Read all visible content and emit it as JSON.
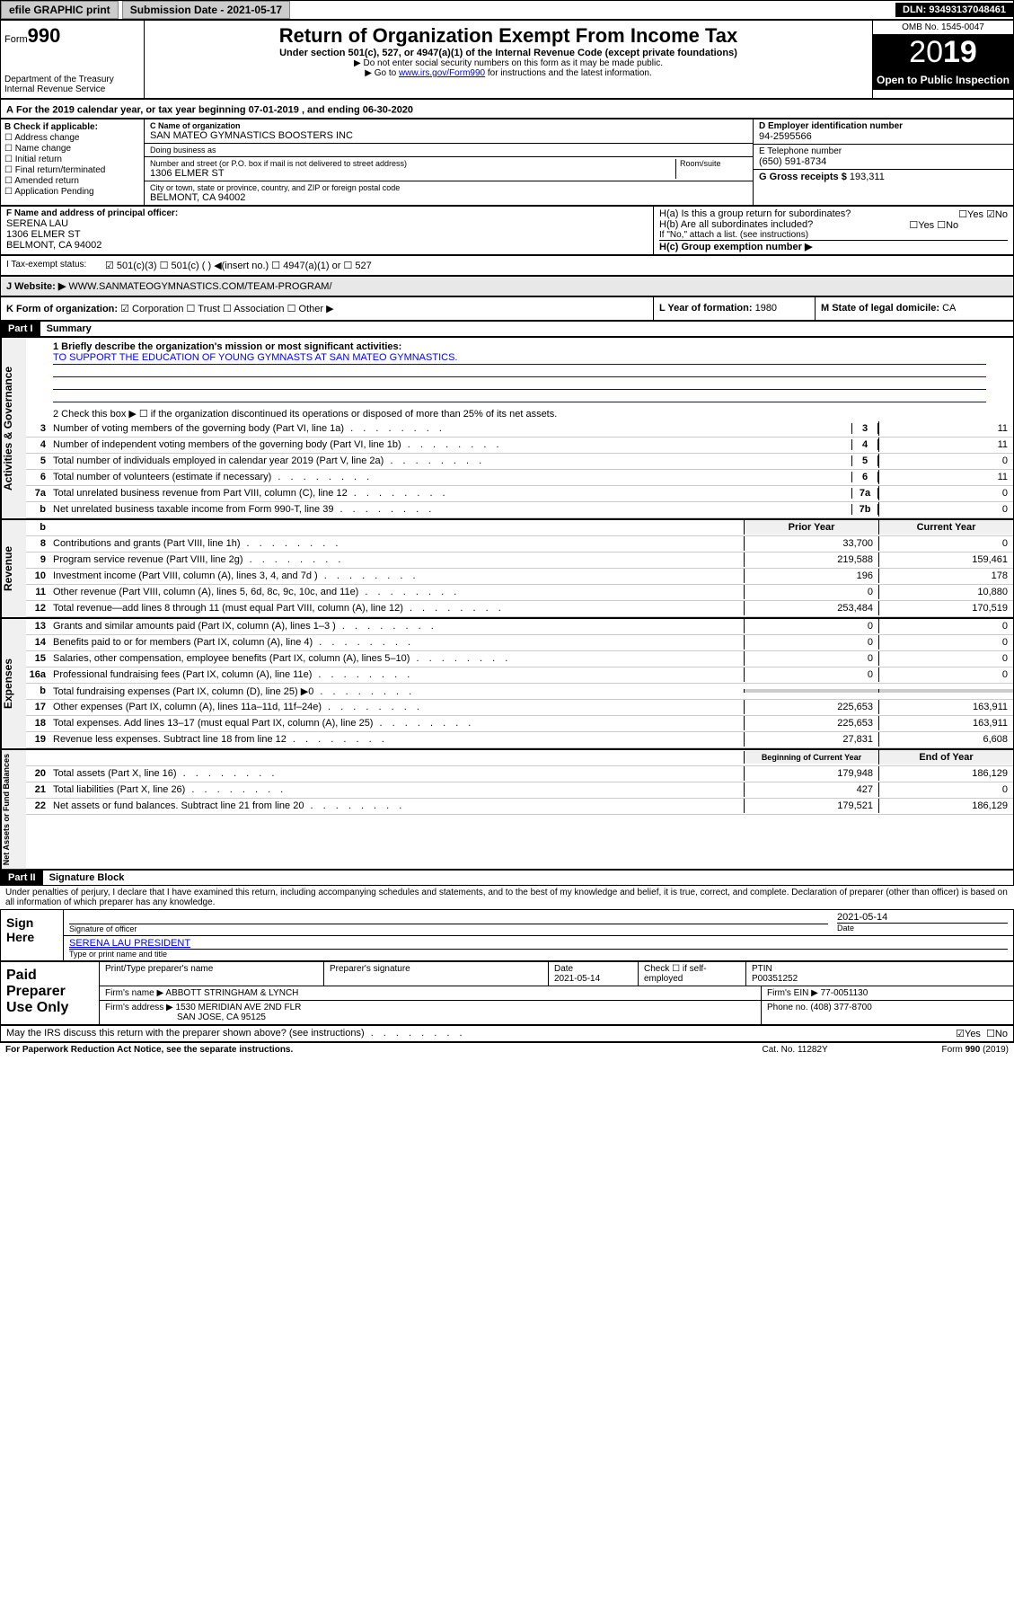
{
  "topbar": {
    "efile": "efile GRAPHIC print",
    "submission": "Submission Date - 2021-05-17",
    "dln": "DLN: 93493137048461"
  },
  "header": {
    "form": "Form",
    "form_no": "990",
    "dept": "Department of the Treasury Internal Revenue Service",
    "title": "Return of Organization Exempt From Income Tax",
    "sub1": "Under section 501(c), 527, or 4947(a)(1) of the Internal Revenue Code (except private foundations)",
    "sub2": "▶ Do not enter social security numbers on this form as it may be made public.",
    "sub3": "▶ Go to www.irs.gov/Form990 for instructions and the latest information.",
    "omb": "OMB No. 1545-0047",
    "year": "2019",
    "open": "Open to Public Inspection"
  },
  "period": "For the 2019 calendar year, or tax year beginning 07-01-2019   , and ending 06-30-2020",
  "checkB": {
    "label": "B Check if applicable:",
    "items": [
      "☐ Address change",
      "☐ Name change",
      "☐ Initial return",
      "☐ Final return/terminated",
      "☐ Amended return",
      "☐ Application Pending"
    ]
  },
  "orgC": {
    "name_label": "C Name of organization",
    "name": "SAN MATEO GYMNASTICS BOOSTERS INC",
    "dba_label": "Doing business as",
    "addr_label": "Number and street (or P.O. box if mail is not delivered to street address)",
    "room_label": "Room/suite",
    "addr": "1306 ELMER ST",
    "city_label": "City or town, state or province, country, and ZIP or foreign postal code",
    "city": "BELMONT, CA  94002"
  },
  "rightD": {
    "ein_label": "D Employer identification number",
    "ein": "94-2595566",
    "tel_label": "E Telephone number",
    "tel": "(650) 591-8734",
    "gross_label": "G Gross receipts $",
    "gross": "193,311"
  },
  "officerF": {
    "label": "F  Name and address of principal officer:",
    "name": "SERENA LAU",
    "addr1": "1306 ELMER ST",
    "addr2": "BELMONT, CA  94002"
  },
  "ha": {
    "label": "H(a)  Is this a group return for subordinates?",
    "yes": "☐Yes",
    "no": "☑No"
  },
  "hb": {
    "label": "H(b)  Are all subordinates included?",
    "yes": "☐Yes",
    "no": "☐No",
    "note": "If \"No,\" attach a list. (see instructions)"
  },
  "hc": "H(c)  Group exemption number ▶",
  "taxstatus": {
    "label": "Tax-exempt status:",
    "opts": "☑ 501(c)(3)   ☐ 501(c) (  ) ◀(insert no.)   ☐ 4947(a)(1) or   ☐ 527"
  },
  "websiteJ": {
    "label": "J Website: ▶",
    "url": "WWW.SANMATEOGYMNASTICS.COM/TEAM-PROGRAM/"
  },
  "formK": {
    "label": "K Form of organization:",
    "opts": "☑ Corporation  ☐ Trust  ☐ Association  ☐ Other ▶"
  },
  "yearL": {
    "label": "L Year of formation:",
    "val": "1980"
  },
  "stateM": {
    "label": "M State of legal domicile:",
    "val": "CA"
  },
  "part1": {
    "hdr": "Part I",
    "title": "Summary",
    "s1": {
      "label": "1  Briefly describe the organization's mission or most significant activities:",
      "mission": "TO SUPPORT THE EDUCATION OF YOUNG GYMNASTS AT SAN MATEO GYMNASTICS."
    },
    "s2": "2  Check this box ▶ ☐ if the organization discontinued its operations or disposed of more than 25% of its net assets.",
    "lines_gov": [
      {
        "n": "3",
        "t": "Number of voting members of the governing body (Part VI, line 1a)",
        "box": "3",
        "v": "11"
      },
      {
        "n": "4",
        "t": "Number of independent voting members of the governing body (Part VI, line 1b)",
        "box": "4",
        "v": "11"
      },
      {
        "n": "5",
        "t": "Total number of individuals employed in calendar year 2019 (Part V, line 2a)",
        "box": "5",
        "v": "0"
      },
      {
        "n": "6",
        "t": "Total number of volunteers (estimate if necessary)",
        "box": "6",
        "v": "11"
      },
      {
        "n": "7a",
        "t": "Total unrelated business revenue from Part VIII, column (C), line 12",
        "box": "7a",
        "v": "0"
      },
      {
        "n": "b",
        "t": "Net unrelated business taxable income from Form 990-T, line 39",
        "box": "7b",
        "v": "0"
      }
    ],
    "colhdr": {
      "prior": "Prior Year",
      "current": "Current Year"
    },
    "lines_rev": [
      {
        "n": "8",
        "t": "Contributions and grants (Part VIII, line 1h)",
        "p": "33,700",
        "c": "0"
      },
      {
        "n": "9",
        "t": "Program service revenue (Part VIII, line 2g)",
        "p": "219,588",
        "c": "159,461"
      },
      {
        "n": "10",
        "t": "Investment income (Part VIII, column (A), lines 3, 4, and 7d )",
        "p": "196",
        "c": "178"
      },
      {
        "n": "11",
        "t": "Other revenue (Part VIII, column (A), lines 5, 6d, 8c, 9c, 10c, and 11e)",
        "p": "0",
        "c": "10,880"
      },
      {
        "n": "12",
        "t": "Total revenue—add lines 8 through 11 (must equal Part VIII, column (A), line 12)",
        "p": "253,484",
        "c": "170,519"
      }
    ],
    "lines_exp": [
      {
        "n": "13",
        "t": "Grants and similar amounts paid (Part IX, column (A), lines 1–3 )",
        "p": "0",
        "c": "0"
      },
      {
        "n": "14",
        "t": "Benefits paid to or for members (Part IX, column (A), line 4)",
        "p": "0",
        "c": "0"
      },
      {
        "n": "15",
        "t": "Salaries, other compensation, employee benefits (Part IX, column (A), lines 5–10)",
        "p": "0",
        "c": "0"
      },
      {
        "n": "16a",
        "t": "Professional fundraising fees (Part IX, column (A), line 11e)",
        "p": "0",
        "c": "0"
      },
      {
        "n": "b",
        "t": "Total fundraising expenses (Part IX, column (D), line 25) ▶0",
        "p": "",
        "c": "",
        "shade": true
      },
      {
        "n": "17",
        "t": "Other expenses (Part IX, column (A), lines 11a–11d, 11f–24e)",
        "p": "225,653",
        "c": "163,911"
      },
      {
        "n": "18",
        "t": "Total expenses. Add lines 13–17 (must equal Part IX, column (A), line 25)",
        "p": "225,653",
        "c": "163,911"
      },
      {
        "n": "19",
        "t": "Revenue less expenses. Subtract line 18 from line 12",
        "p": "27,831",
        "c": "6,608"
      }
    ],
    "colhdr2": {
      "prior": "Beginning of Current Year",
      "current": "End of Year"
    },
    "lines_net": [
      {
        "n": "20",
        "t": "Total assets (Part X, line 16)",
        "p": "179,948",
        "c": "186,129"
      },
      {
        "n": "21",
        "t": "Total liabilities (Part X, line 26)",
        "p": "427",
        "c": "0"
      },
      {
        "n": "22",
        "t": "Net assets or fund balances. Subtract line 21 from line 20",
        "p": "179,521",
        "c": "186,129"
      }
    ],
    "side": {
      "gov": "Activities & Governance",
      "rev": "Revenue",
      "exp": "Expenses",
      "net": "Net Assets or Fund Balances"
    }
  },
  "part2": {
    "hdr": "Part II",
    "title": "Signature Block",
    "decl": "Under penalties of perjury, I declare that I have examined this return, including accompanying schedules and statements, and to the best of my knowledge and belief, it is true, correct, and complete. Declaration of preparer (other than officer) is based on all information of which preparer has any knowledge."
  },
  "sign": {
    "label": "Sign Here",
    "sig_label": "Signature of officer",
    "date": "2021-05-14",
    "date_label": "Date",
    "name": "SERENA LAU PRESIDENT",
    "name_label": "Type or print name and title"
  },
  "paid": {
    "label": "Paid Preparer Use Only",
    "h1": "Print/Type preparer's name",
    "h2": "Preparer's signature",
    "h3": "Date",
    "h4": "Check ☐ if self-employed",
    "h5": "PTIN",
    "date": "2021-05-14",
    "ptin": "P00351252",
    "firm_label": "Firm's name    ▶",
    "firm": "ABBOTT STRINGHAM & LYNCH",
    "ein_label": "Firm's EIN ▶",
    "ein": "77-0051130",
    "addr_label": "Firm's address ▶",
    "addr1": "1530 MERIDIAN AVE 2ND FLR",
    "addr2": "SAN JOSE, CA  95125",
    "phone_label": "Phone no.",
    "phone": "(408) 377-8700"
  },
  "discuss": {
    "txt": "May the IRS discuss this return with the preparer shown above? (see instructions)",
    "yes": "☑Yes",
    "no": "☐No"
  },
  "footer": {
    "left": "For Paperwork Reduction Act Notice, see the separate instructions.",
    "mid": "Cat. No. 11282Y",
    "right": "Form 990 (2019)"
  }
}
